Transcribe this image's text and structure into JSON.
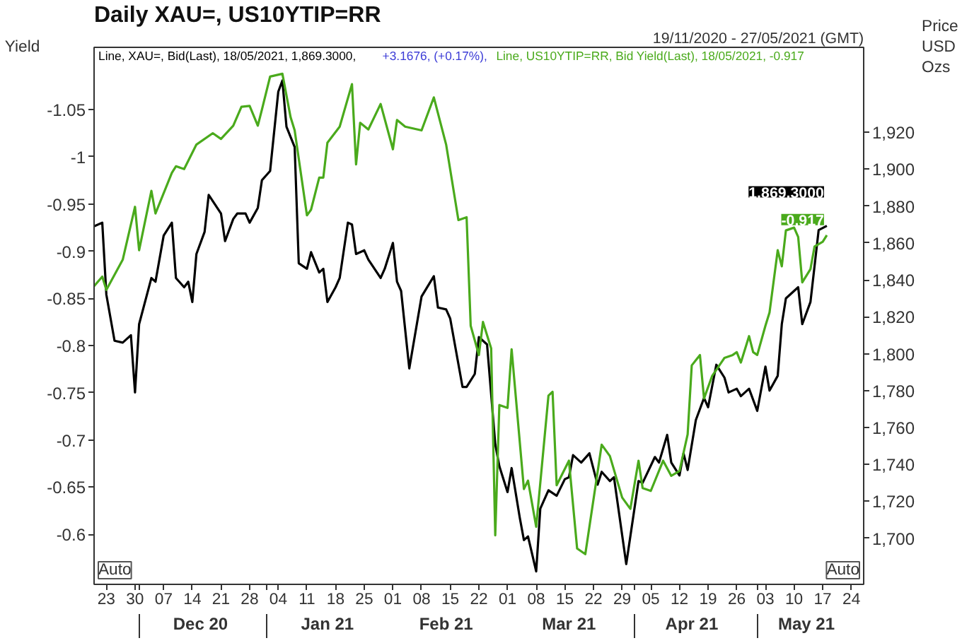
{
  "chart_data": {
    "type": "line",
    "title": "Daily XAU=, US10YTIP=RR",
    "subtitle": "19/11/2020 - 27/05/2021 (GMT)",
    "ylabel": "Yield",
    "y2label": "Price\nUSD\nOzs",
    "annotations": [
      "+3.1676, (+0.17%),",
      "Auto",
      "Auto"
    ],
    "xlim": [
      "2020-11-20",
      "2021-05-27"
    ],
    "xticks": [
      {
        "value": "2020-12-01",
        "label": null
      },
      {
        "value": "2021-01-01",
        "label": null
      },
      {
        "value": "2021-04-01",
        "label": null
      },
      {
        "value": "2021-05-01",
        "label": null
      },
      {
        "value": "2020-11-23",
        "label": "23"
      },
      {
        "value": "2020-11-30",
        "label": "30"
      },
      {
        "value": "2020-12-07",
        "label": "07"
      },
      {
        "value": "2020-12-14",
        "label": "14"
      },
      {
        "value": "2020-12-21",
        "label": "21"
      },
      {
        "value": "2020-12-28",
        "label": "28"
      },
      {
        "value": "2021-01-04",
        "label": "04"
      },
      {
        "value": "2021-01-11",
        "label": "11"
      },
      {
        "value": "2021-01-18",
        "label": "18"
      },
      {
        "value": "2021-01-25",
        "label": "25"
      },
      {
        "value": "2021-02-01",
        "label": "01"
      },
      {
        "value": "2021-02-08",
        "label": "08"
      },
      {
        "value": "2021-02-15",
        "label": "15"
      },
      {
        "value": "2021-02-22",
        "label": "22"
      },
      {
        "value": "2021-03-01",
        "label": "01"
      },
      {
        "value": "2021-03-08",
        "label": "08"
      },
      {
        "value": "2021-03-15",
        "label": "15"
      },
      {
        "value": "2021-03-22",
        "label": "22"
      },
      {
        "value": "2021-03-29",
        "label": "29"
      },
      {
        "value": "2021-04-05",
        "label": "05"
      },
      {
        "value": "2021-04-12",
        "label": "12"
      },
      {
        "value": "2021-04-19",
        "label": "19"
      },
      {
        "value": "2021-04-26",
        "label": "26"
      },
      {
        "value": "2021-05-03",
        "label": "03"
      },
      {
        "value": "2021-05-10",
        "label": "10"
      },
      {
        "value": "2021-05-17",
        "label": "17"
      },
      {
        "value": "2021-05-24",
        "label": "24"
      }
    ],
    "x2lim": [
      "2020-11-20",
      "2021-05-27"
    ],
    "x2ticks": [
      {
        "value": "2020-12-16",
        "label": "Dec 20"
      },
      {
        "value": "2021-01-16",
        "label": "Jan 21"
      },
      {
        "value": "2021-02-14",
        "label": "Feb 21"
      },
      {
        "value": "2021-03-16",
        "label": "Mar 21"
      },
      {
        "value": "2021-04-15",
        "label": "Apr 21"
      },
      {
        "value": "2021-05-13",
        "label": "May 21"
      }
    ],
    "ylim": [
      -0.547,
      -1.116
    ],
    "yticks": [
      -1.05,
      -1,
      -0.95,
      -0.9,
      -0.85,
      -0.8,
      -0.75,
      -0.7,
      -0.65,
      -0.6
    ],
    "y2lim": [
      1675,
      1966
    ],
    "y2ticks": [
      {
        "value": 1700,
        "label": "1,700"
      },
      {
        "value": 1720,
        "label": "1,720"
      },
      {
        "value": 1740,
        "label": "1,740"
      },
      {
        "value": 1760,
        "label": "1,760"
      },
      {
        "value": 1780,
        "label": "1,780"
      },
      {
        "value": 1800,
        "label": "1,800"
      },
      {
        "value": 1820,
        "label": "1,820"
      },
      {
        "value": 1840,
        "label": "1,840"
      },
      {
        "value": 1860,
        "label": "1,860"
      },
      {
        "value": 1880,
        "label": "1,880"
      },
      {
        "value": 1900,
        "label": "1,900"
      },
      {
        "value": 1920,
        "label": "1,920"
      }
    ],
    "series": [
      {
        "name": "Line, XAU=, Bid(Last), 18/05/2021, 1,869.3000,",
        "color": "#000000",
        "axis": "y2",
        "x": [
          "2020-11-20",
          "2020-11-22",
          "2020-11-23",
          "2020-11-25",
          "2020-11-27",
          "2020-11-29",
          "2020-11-30",
          "2020-12-01",
          "2020-12-04",
          "2020-12-05",
          "2020-12-07",
          "2020-12-09",
          "2020-12-10",
          "2020-12-12",
          "2020-12-13",
          "2020-12-14",
          "2020-12-15",
          "2020-12-17",
          "2020-12-18",
          "2020-12-21",
          "2020-12-22",
          "2020-12-24",
          "2020-12-25",
          "2020-12-27",
          "2020-12-28",
          "2020-12-30",
          "2020-12-31",
          "2021-01-02",
          "2021-01-04",
          "2021-01-05",
          "2021-01-06",
          "2021-01-08",
          "2021-01-09",
          "2021-01-11",
          "2021-01-12",
          "2021-01-14",
          "2021-01-15",
          "2021-01-16",
          "2021-01-18",
          "2021-01-19",
          "2021-01-21",
          "2021-01-22",
          "2021-01-23",
          "2021-01-25",
          "2021-01-26",
          "2021-01-29",
          "2021-01-30",
          "2021-02-01",
          "2021-02-02",
          "2021-02-03",
          "2021-02-05",
          "2021-02-08",
          "2021-02-11",
          "2021-02-12",
          "2021-02-14",
          "2021-02-15",
          "2021-02-18",
          "2021-02-19",
          "2021-02-21",
          "2021-02-22",
          "2021-02-23",
          "2021-02-24",
          "2021-02-26",
          "2021-02-27",
          "2021-03-01",
          "2021-03-02",
          "2021-03-04",
          "2021-03-05",
          "2021-03-06",
          "2021-03-08",
          "2021-03-09",
          "2021-03-11",
          "2021-03-13",
          "2021-03-15",
          "2021-03-16",
          "2021-03-17",
          "2021-03-19",
          "2021-03-21",
          "2021-03-23",
          "2021-03-24",
          "2021-03-26",
          "2021-03-27",
          "2021-03-30",
          "2021-04-02",
          "2021-04-03",
          "2021-04-06",
          "2021-04-07",
          "2021-04-09",
          "2021-04-10",
          "2021-04-12",
          "2021-04-13",
          "2021-04-14",
          "2021-04-16",
          "2021-04-18",
          "2021-04-19",
          "2021-04-21",
          "2021-04-23",
          "2021-04-24",
          "2021-04-26",
          "2021-04-27",
          "2021-04-29",
          "2021-05-01",
          "2021-05-03",
          "2021-05-04",
          "2021-05-06",
          "2021-05-07",
          "2021-05-08",
          "2021-05-11",
          "2021-05-12",
          "2021-05-14",
          "2021-05-16",
          "2021-05-18"
        ],
        "values": [
          1869,
          1871,
          1832,
          1807,
          1806,
          1810,
          1779,
          1816,
          1841,
          1839,
          1864,
          1871,
          1841,
          1836,
          1839,
          1828,
          1854,
          1866,
          1886,
          1876,
          1861,
          1873,
          1876,
          1876,
          1871,
          1879,
          1894,
          1899,
          1942,
          1948,
          1923,
          1912,
          1849,
          1846,
          1855,
          1844,
          1846,
          1828,
          1836,
          1841,
          1871,
          1870,
          1854,
          1856,
          1851,
          1841,
          1846,
          1860,
          1839,
          1834,
          1792,
          1831,
          1842,
          1825,
          1824,
          1819,
          1782,
          1782,
          1789,
          1809,
          1807,
          1805,
          1751,
          1739,
          1725,
          1738,
          1711,
          1699,
          1701,
          1682,
          1716,
          1726,
          1723,
          1732,
          1733,
          1745,
          1741,
          1746,
          1729,
          1736,
          1731,
          1733,
          1686,
          1731,
          1730,
          1744,
          1741,
          1756,
          1741,
          1734,
          1746,
          1737,
          1764,
          1776,
          1771,
          1794,
          1787,
          1779,
          1781,
          1777,
          1781,
          1769,
          1793,
          1780,
          1788,
          1816,
          1830,
          1836,
          1816,
          1828,
          1867,
          1869.3
        ],
        "value_labels": [
          null,
          null,
          null,
          null,
          null,
          null,
          null,
          null,
          null,
          null,
          null,
          null,
          null,
          null,
          null,
          null,
          null,
          null,
          null,
          null,
          null,
          null,
          null,
          null,
          null,
          null,
          null,
          null,
          null,
          null,
          null,
          null,
          null,
          null,
          null,
          null,
          null,
          null,
          null,
          null,
          null,
          null,
          null,
          null,
          null,
          null,
          null,
          null,
          null,
          null,
          null,
          null,
          null,
          null,
          null,
          null,
          null,
          null,
          null,
          null,
          null,
          null,
          null,
          null,
          null,
          null,
          null,
          null,
          null,
          null,
          null,
          null,
          null,
          null,
          null,
          null,
          null,
          null,
          null,
          null,
          null,
          null,
          null,
          null,
          null,
          null,
          null,
          null,
          null,
          null,
          null,
          null,
          null,
          null,
          null,
          null,
          null,
          null,
          null,
          null,
          null,
          null,
          null,
          null,
          null,
          null,
          null,
          null,
          null,
          null,
          null,
          "1,869.3000"
        ]
      },
      {
        "name": "Line, US10YTIP=RR, Bid Yield(Last), 18/05/2021, -0.917",
        "color": "#4aaa1c",
        "axis": "y",
        "x": [
          "2020-11-20",
          "2020-11-22",
          "2020-11-23",
          "2020-11-27",
          "2020-11-30",
          "2020-12-01",
          "2020-12-04",
          "2020-12-05",
          "2020-12-09",
          "2020-12-10",
          "2020-12-12",
          "2020-12-15",
          "2020-12-19",
          "2020-12-21",
          "2020-12-24",
          "2020-12-26",
          "2020-12-28",
          "2020-12-30",
          "2020-12-31",
          "2021-01-02",
          "2021-01-05",
          "2021-01-07",
          "2021-01-08",
          "2021-01-11",
          "2021-01-12",
          "2021-01-14",
          "2021-01-15",
          "2021-01-16",
          "2021-01-19",
          "2021-01-22",
          "2021-01-23",
          "2021-01-24",
          "2021-01-26",
          "2021-01-29",
          "2021-02-01",
          "2021-02-02",
          "2021-02-04",
          "2021-02-08",
          "2021-02-11",
          "2021-02-14",
          "2021-02-17",
          "2021-02-19",
          "2021-02-20",
          "2021-02-22",
          "2021-02-23",
          "2021-02-25",
          "2021-02-26",
          "2021-02-27",
          "2021-03-01",
          "2021-03-02",
          "2021-03-05",
          "2021-03-06",
          "2021-03-08",
          "2021-03-11",
          "2021-03-12",
          "2021-03-13",
          "2021-03-16",
          "2021-03-18",
          "2021-03-20",
          "2021-03-24",
          "2021-03-26",
          "2021-03-29",
          "2021-03-31",
          "2021-04-02",
          "2021-04-03",
          "2021-04-05",
          "2021-04-08",
          "2021-04-10",
          "2021-04-12",
          "2021-04-14",
          "2021-04-15",
          "2021-04-17",
          "2021-04-18",
          "2021-04-20",
          "2021-04-23",
          "2021-04-25",
          "2021-04-26",
          "2021-04-27",
          "2021-04-29",
          "2021-04-30",
          "2021-05-01",
          "2021-05-03",
          "2021-05-04",
          "2021-05-06",
          "2021-05-07",
          "2021-05-08",
          "2021-05-10",
          "2021-05-11",
          "2021-05-12",
          "2021-05-14",
          "2021-05-15",
          "2021-05-17",
          "2021-05-18"
        ],
        "values": [
          -0.863,
          -0.873,
          -0.859,
          -0.891,
          -0.947,
          -0.901,
          -0.964,
          -0.94,
          -0.983,
          -0.99,
          -0.987,
          -1.013,
          -1.025,
          -1.019,
          -1.033,
          -1.053,
          -1.054,
          -1.033,
          -1.05,
          -1.085,
          -1.088,
          -1.042,
          -1.028,
          -0.938,
          -0.944,
          -0.978,
          -0.978,
          -1.015,
          -1.032,
          -1.077,
          -0.992,
          -1.036,
          -1.029,
          -1.056,
          -1.008,
          -1.039,
          -1.032,
          -1.028,
          -1.063,
          -1.013,
          -0.933,
          -0.936,
          -0.821,
          -0.79,
          -0.825,
          -0.797,
          -0.599,
          -0.737,
          -0.734,
          -0.796,
          -0.648,
          -0.657,
          -0.608,
          -0.747,
          -0.751,
          -0.652,
          -0.678,
          -0.585,
          -0.579,
          -0.695,
          -0.683,
          -0.639,
          -0.627,
          -0.678,
          -0.649,
          -0.646,
          -0.678,
          -0.662,
          -0.667,
          -0.706,
          -0.779,
          -0.79,
          -0.744,
          -0.768,
          -0.787,
          -0.79,
          -0.793,
          -0.782,
          -0.81,
          -0.793,
          -0.79,
          -0.821,
          -0.835,
          -0.901,
          -0.884,
          -0.922,
          -0.925,
          -0.915,
          -0.867,
          -0.881,
          -0.905,
          -0.91,
          -0.917
        ],
        "value_labels": [
          null,
          null,
          null,
          null,
          null,
          null,
          null,
          null,
          null,
          null,
          null,
          null,
          null,
          null,
          null,
          null,
          null,
          null,
          null,
          null,
          null,
          null,
          null,
          null,
          null,
          null,
          null,
          null,
          null,
          null,
          null,
          null,
          null,
          null,
          null,
          null,
          null,
          null,
          null,
          null,
          null,
          null,
          null,
          null,
          null,
          null,
          null,
          null,
          null,
          null,
          null,
          null,
          null,
          null,
          null,
          null,
          null,
          null,
          null,
          null,
          null,
          null,
          null,
          null,
          null,
          null,
          null,
          null,
          null,
          null,
          null,
          null,
          null,
          null,
          null,
          null,
          null,
          null,
          null,
          null,
          null,
          null,
          null,
          null,
          null,
          null,
          null,
          null,
          null,
          null,
          null,
          null,
          "-0.917"
        ]
      }
    ]
  }
}
